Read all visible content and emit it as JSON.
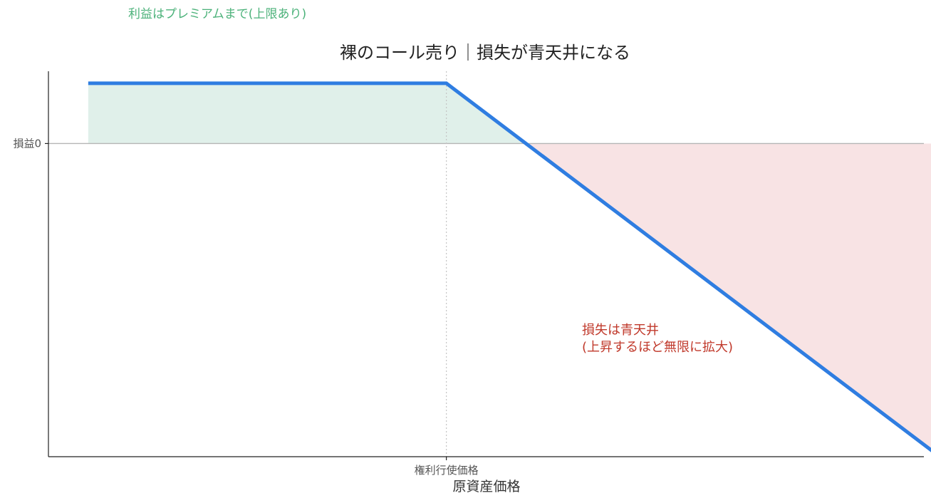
{
  "chart_data": {
    "type": "line",
    "title": "裸のコール売り｜損失が青天井になる",
    "xlabel": "原資産価格",
    "ylabel": "",
    "x_ticks": [
      {
        "x": 50,
        "label": "権利行使価格"
      }
    ],
    "y_ticks": [
      {
        "y": 0,
        "label": "損益0"
      }
    ],
    "xlim": [
      0,
      110
    ],
    "ylim": [
      -52,
      12
    ],
    "grid": false,
    "series": [
      {
        "x": [
          5,
          50,
          120
        ],
        "y": [
          10,
          10,
          -60
        ]
      }
    ],
    "line_x_range": [
      5,
      117
    ],
    "premium": 10,
    "strike": 50,
    "annotations": {
      "profit": "利益はプレミアムまで(上限あり)",
      "loss_line1": "損失は青天井",
      "loss_line2": "(上昇するほど無限に拡大)"
    },
    "colors": {
      "line": "#2f7de1",
      "profit_fill": "#e0f0ea",
      "loss_fill": "#f8e3e4",
      "loss_fill_edge": "#f0c8cb",
      "profit_text": "#4cb27a",
      "loss_text": "#c0392b",
      "zero_line": "#b5b5b5",
      "strike_line": "#c4c4c4",
      "axis": "#222222"
    }
  }
}
